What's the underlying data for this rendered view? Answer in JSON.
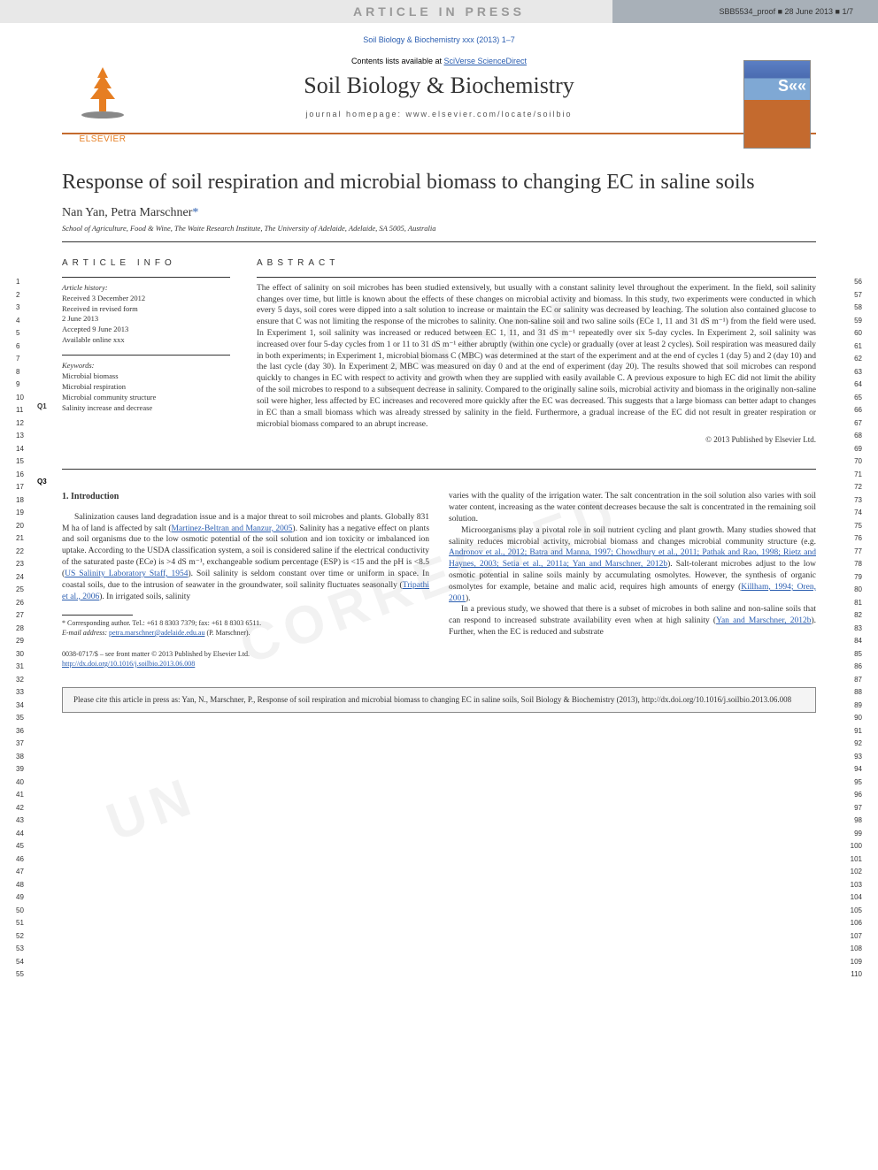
{
  "banner": {
    "text": "ARTICLE IN PRESS",
    "proof": "SBB5534_proof ■ 28 June 2013 ■ 1/7"
  },
  "journalRef": "Soil Biology & Biochemistry xxx (2013) 1–7",
  "header": {
    "contents": "Contents lists available at ",
    "contentsLink": "SciVerse ScienceDirect",
    "journalTitle": "Soil Biology & Biochemistry",
    "homepage": "journal homepage: www.elsevier.com/locate/soilbio",
    "publisher": "ELSEVIER"
  },
  "title": "Response of soil respiration and microbial biomass to changing EC in saline soils",
  "query3": "Q3",
  "query1": "Q1",
  "authors": "Nan Yan, Petra Marschner",
  "corrMark": "*",
  "affiliation": "School of Agriculture, Food & Wine, The Waite Research Institute, The University of Adelaide, Adelaide, SA 5005, Australia",
  "articleInfo": {
    "header": "ARTICLE INFO",
    "historyLabel": "Article history:",
    "received": "Received 3 December 2012",
    "revised": "Received in revised form",
    "revisedDate": "2 June 2013",
    "accepted": "Accepted 9 June 2013",
    "available": "Available online xxx",
    "keywordsLabel": "Keywords:",
    "kw1": "Microbial biomass",
    "kw2": "Microbial respiration",
    "kw3": "Microbial community structure",
    "kw4": "Salinity increase and decrease"
  },
  "abstract": {
    "header": "ABSTRACT",
    "text": "The effect of salinity on soil microbes has been studied extensively, but usually with a constant salinity level throughout the experiment. In the field, soil salinity changes over time, but little is known about the effects of these changes on microbial activity and biomass. In this study, two experiments were conducted in which every 5 days, soil cores were dipped into a salt solution to increase or maintain the EC or salinity was decreased by leaching. The solution also contained glucose to ensure that C was not limiting the response of the microbes to salinity. One non-saline soil and two saline soils (ECe 1, 11 and 31 dS m⁻¹) from the field were used. In Experiment 1, soil salinity was increased or reduced between EC 1, 11, and 31 dS m⁻¹ repeatedly over six 5-day cycles. In Experiment 2, soil salinity was increased over four 5-day cycles from 1 or 11 to 31 dS m⁻¹ either abruptly (within one cycle) or gradually (over at least 2 cycles). Soil respiration was measured daily in both experiments; in Experiment 1, microbial biomass C (MBC) was determined at the start of the experiment and at the end of cycles 1 (day 5) and 2 (day 10) and the last cycle (day 30). In Experiment 2, MBC was measured on day 0 and at the end of experiment (day 20). The results showed that soil microbes can respond quickly to changes in EC with respect to activity and growth when they are supplied with easily available C. A previous exposure to high EC did not limit the ability of the soil microbes to respond to a subsequent decrease in salinity. Compared to the originally saline soils, microbial activity and biomass in the originally non-saline soil were higher, less affected by EC increases and recovered more quickly after the EC was decreased. This suggests that a large biomass can better adapt to changes in EC than a small biomass which was already stressed by salinity in the field. Furthermore, a gradual increase of the EC did not result in greater respiration or microbial biomass compared to an abrupt increase.",
    "copyright": "© 2013 Published by Elsevier Ltd."
  },
  "intro": {
    "header": "1. Introduction",
    "p1a": "Salinization causes land degradation issue and is a major threat to soil microbes and plants. Globally 831 M ha of land is affected by salt (",
    "p1ref1": "Martinez-Beltran and Manzur, 2005",
    "p1b": "). Salinity has a negative effect on plants and soil organisms due to the low osmotic potential of the soil solution and ion toxicity or imbalanced ion uptake. According to the USDA classification system, a soil is considered saline if the electrical conductivity of the saturated paste (ECe) is >4 dS m⁻¹, exchangeable sodium percentage (ESP) is <15 and the pH is <8.5 (",
    "p1ref2": "US Salinity Laboratory Staff, 1954",
    "p1c": "). Soil salinity is seldom constant over time or uniform in space. In coastal soils, due to the intrusion of seawater in the groundwater, soil salinity fluctuates seasonally (",
    "p1ref3": "Tripathi et al., 2006",
    "p1d": "). In irrigated soils, salinity",
    "p2a": "varies with the quality of the irrigation water. The salt concentration in the soil solution also varies with soil water content, increasing as the water content decreases because the salt is concentrated in the remaining soil solution.",
    "p3a": "Microorganisms play a pivotal role in soil nutrient cycling and plant growth. Many studies showed that salinity reduces microbial activity, microbial biomass and changes microbial community structure (e.g. ",
    "p3ref1": "Andronov et al., 2012; Batra and Manna, 1997; Chowdhury et al., 2011; Pathak and Rao, 1998; Rietz and Haynes, 2003; Setia et al., 2011a; Yan and Marschner, 2012b",
    "p3b": "). Salt-tolerant microbes adjust to the low osmotic potential in saline soils mainly by accumulating osmolytes. However, the synthesis of organic osmolytes for example, betaine and malic acid, requires high amounts of energy (",
    "p3ref2": "Killham, 1994; Oren, 2001",
    "p3c": ").",
    "p4a": "In a previous study, we showed that there is a subset of microbes in both saline and non-saline soils that can respond to increased substrate availability even when at high salinity (",
    "p4ref1": "Yan and Marschner, 2012b",
    "p4b": "). Further, when the EC is reduced and substrate"
  },
  "footnote": {
    "corr": "* Corresponding author. Tel.: +61 8 8303 7379; fax: +61 8 8303 6511.",
    "emailLabel": "E-mail address: ",
    "email": "petra.marschner@adelaide.edu.au",
    "emailSuffix": " (P. Marschner)."
  },
  "bottomInfo": {
    "front": "0038-0717/$ – see front matter © 2013 Published by Elsevier Ltd.",
    "doi": "http://dx.doi.org/10.1016/j.soilbio.2013.06.008"
  },
  "citeBox": "Please cite this article in press as: Yan, N., Marschner, P., Response of soil respiration and microbial biomass to changing EC in saline soils, Soil Biology & Biochemistry (2013), http://dx.doi.org/10.1016/j.soilbio.2013.06.008",
  "lineNumbers": {
    "leftStart": 1,
    "leftEnd": 55,
    "rightStart": 56,
    "rightEnd": 110
  },
  "colors": {
    "accent": "#c46a2e",
    "link": "#2a5db0",
    "bannerBg": "#e8e8e8",
    "proofBg": "#a8b0b8"
  }
}
